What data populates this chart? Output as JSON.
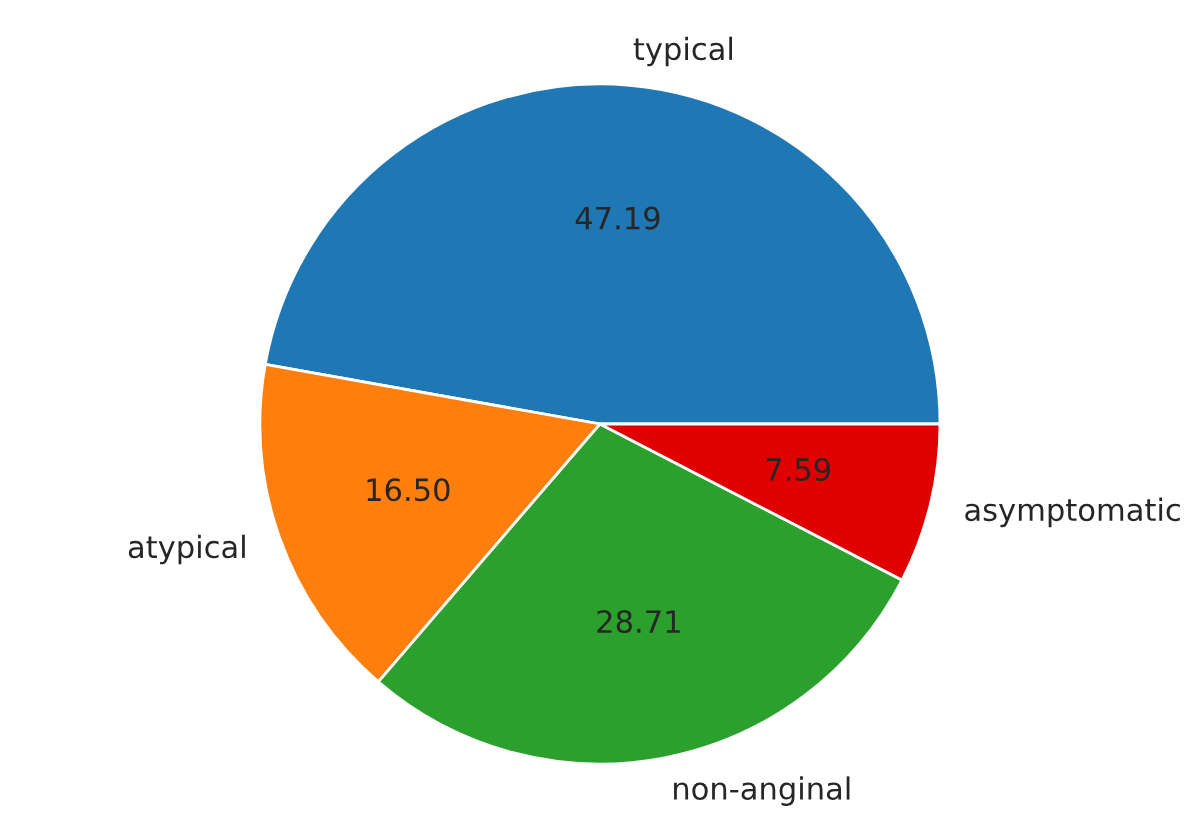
{
  "chart_data": {
    "type": "pie",
    "categories": [
      "typical",
      "atypical",
      "non-anginal",
      "asymptomatic"
    ],
    "values": [
      47.19,
      16.5,
      28.71,
      7.59
    ],
    "value_labels": [
      "47.19",
      "16.50",
      "28.71",
      "7.59"
    ],
    "colors": [
      "#1f77b4",
      "#ff7f0e",
      "#2ca02c",
      "#e00000"
    ]
  }
}
